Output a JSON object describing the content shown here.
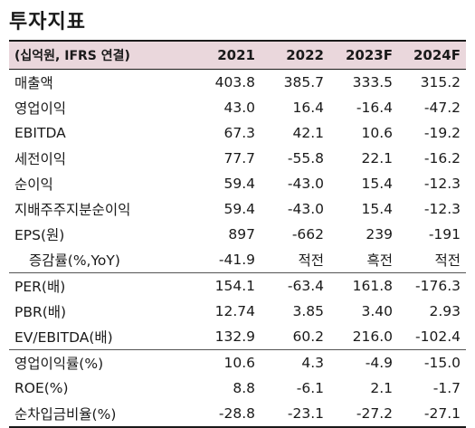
{
  "title": "투자지표",
  "header": {
    "label": "(십억원, IFRS 연결)",
    "years": [
      "2021",
      "2022",
      "2023F",
      "2024F"
    ]
  },
  "rows": [
    {
      "label": "매출액",
      "values": [
        "403.8",
        "385.7",
        "333.5",
        "315.2"
      ]
    },
    {
      "label": "영업이익",
      "values": [
        "43.0",
        "16.4",
        "-16.4",
        "-47.2"
      ]
    },
    {
      "label": "EBITDA",
      "values": [
        "67.3",
        "42.1",
        "10.6",
        "-19.2"
      ]
    },
    {
      "label": "세전이익",
      "values": [
        "77.7",
        "-55.8",
        "22.1",
        "-16.2"
      ]
    },
    {
      "label": "순이익",
      "values": [
        "59.4",
        "-43.0",
        "15.4",
        "-12.3"
      ]
    },
    {
      "label": "지배주주지분순이익",
      "values": [
        "59.4",
        "-43.0",
        "15.4",
        "-12.3"
      ]
    },
    {
      "label": "EPS(원)",
      "values": [
        "897",
        "-662",
        "239",
        "-191"
      ]
    },
    {
      "label": "증감률(%,YoY)",
      "values": [
        "-41.9",
        "적전",
        "흑전",
        "적전"
      ]
    },
    {
      "label": "PER(배)",
      "values": [
        "154.1",
        "-63.4",
        "161.8",
        "-176.3"
      ]
    },
    {
      "label": "PBR(배)",
      "values": [
        "12.74",
        "3.85",
        "3.40",
        "2.93"
      ]
    },
    {
      "label": "EV/EBITDA(배)",
      "values": [
        "132.9",
        "60.2",
        "216.0",
        "-102.4"
      ]
    },
    {
      "label": "영업이익률(%)",
      "values": [
        "10.6",
        "4.3",
        "-4.9",
        "-15.0"
      ]
    },
    {
      "label": "ROE(%)",
      "values": [
        "8.8",
        "-6.1",
        "2.1",
        "-1.7"
      ]
    },
    {
      "label": "순차입금비율(%)",
      "values": [
        "-28.8",
        "-23.1",
        "-27.2",
        "-27.1"
      ]
    }
  ]
}
